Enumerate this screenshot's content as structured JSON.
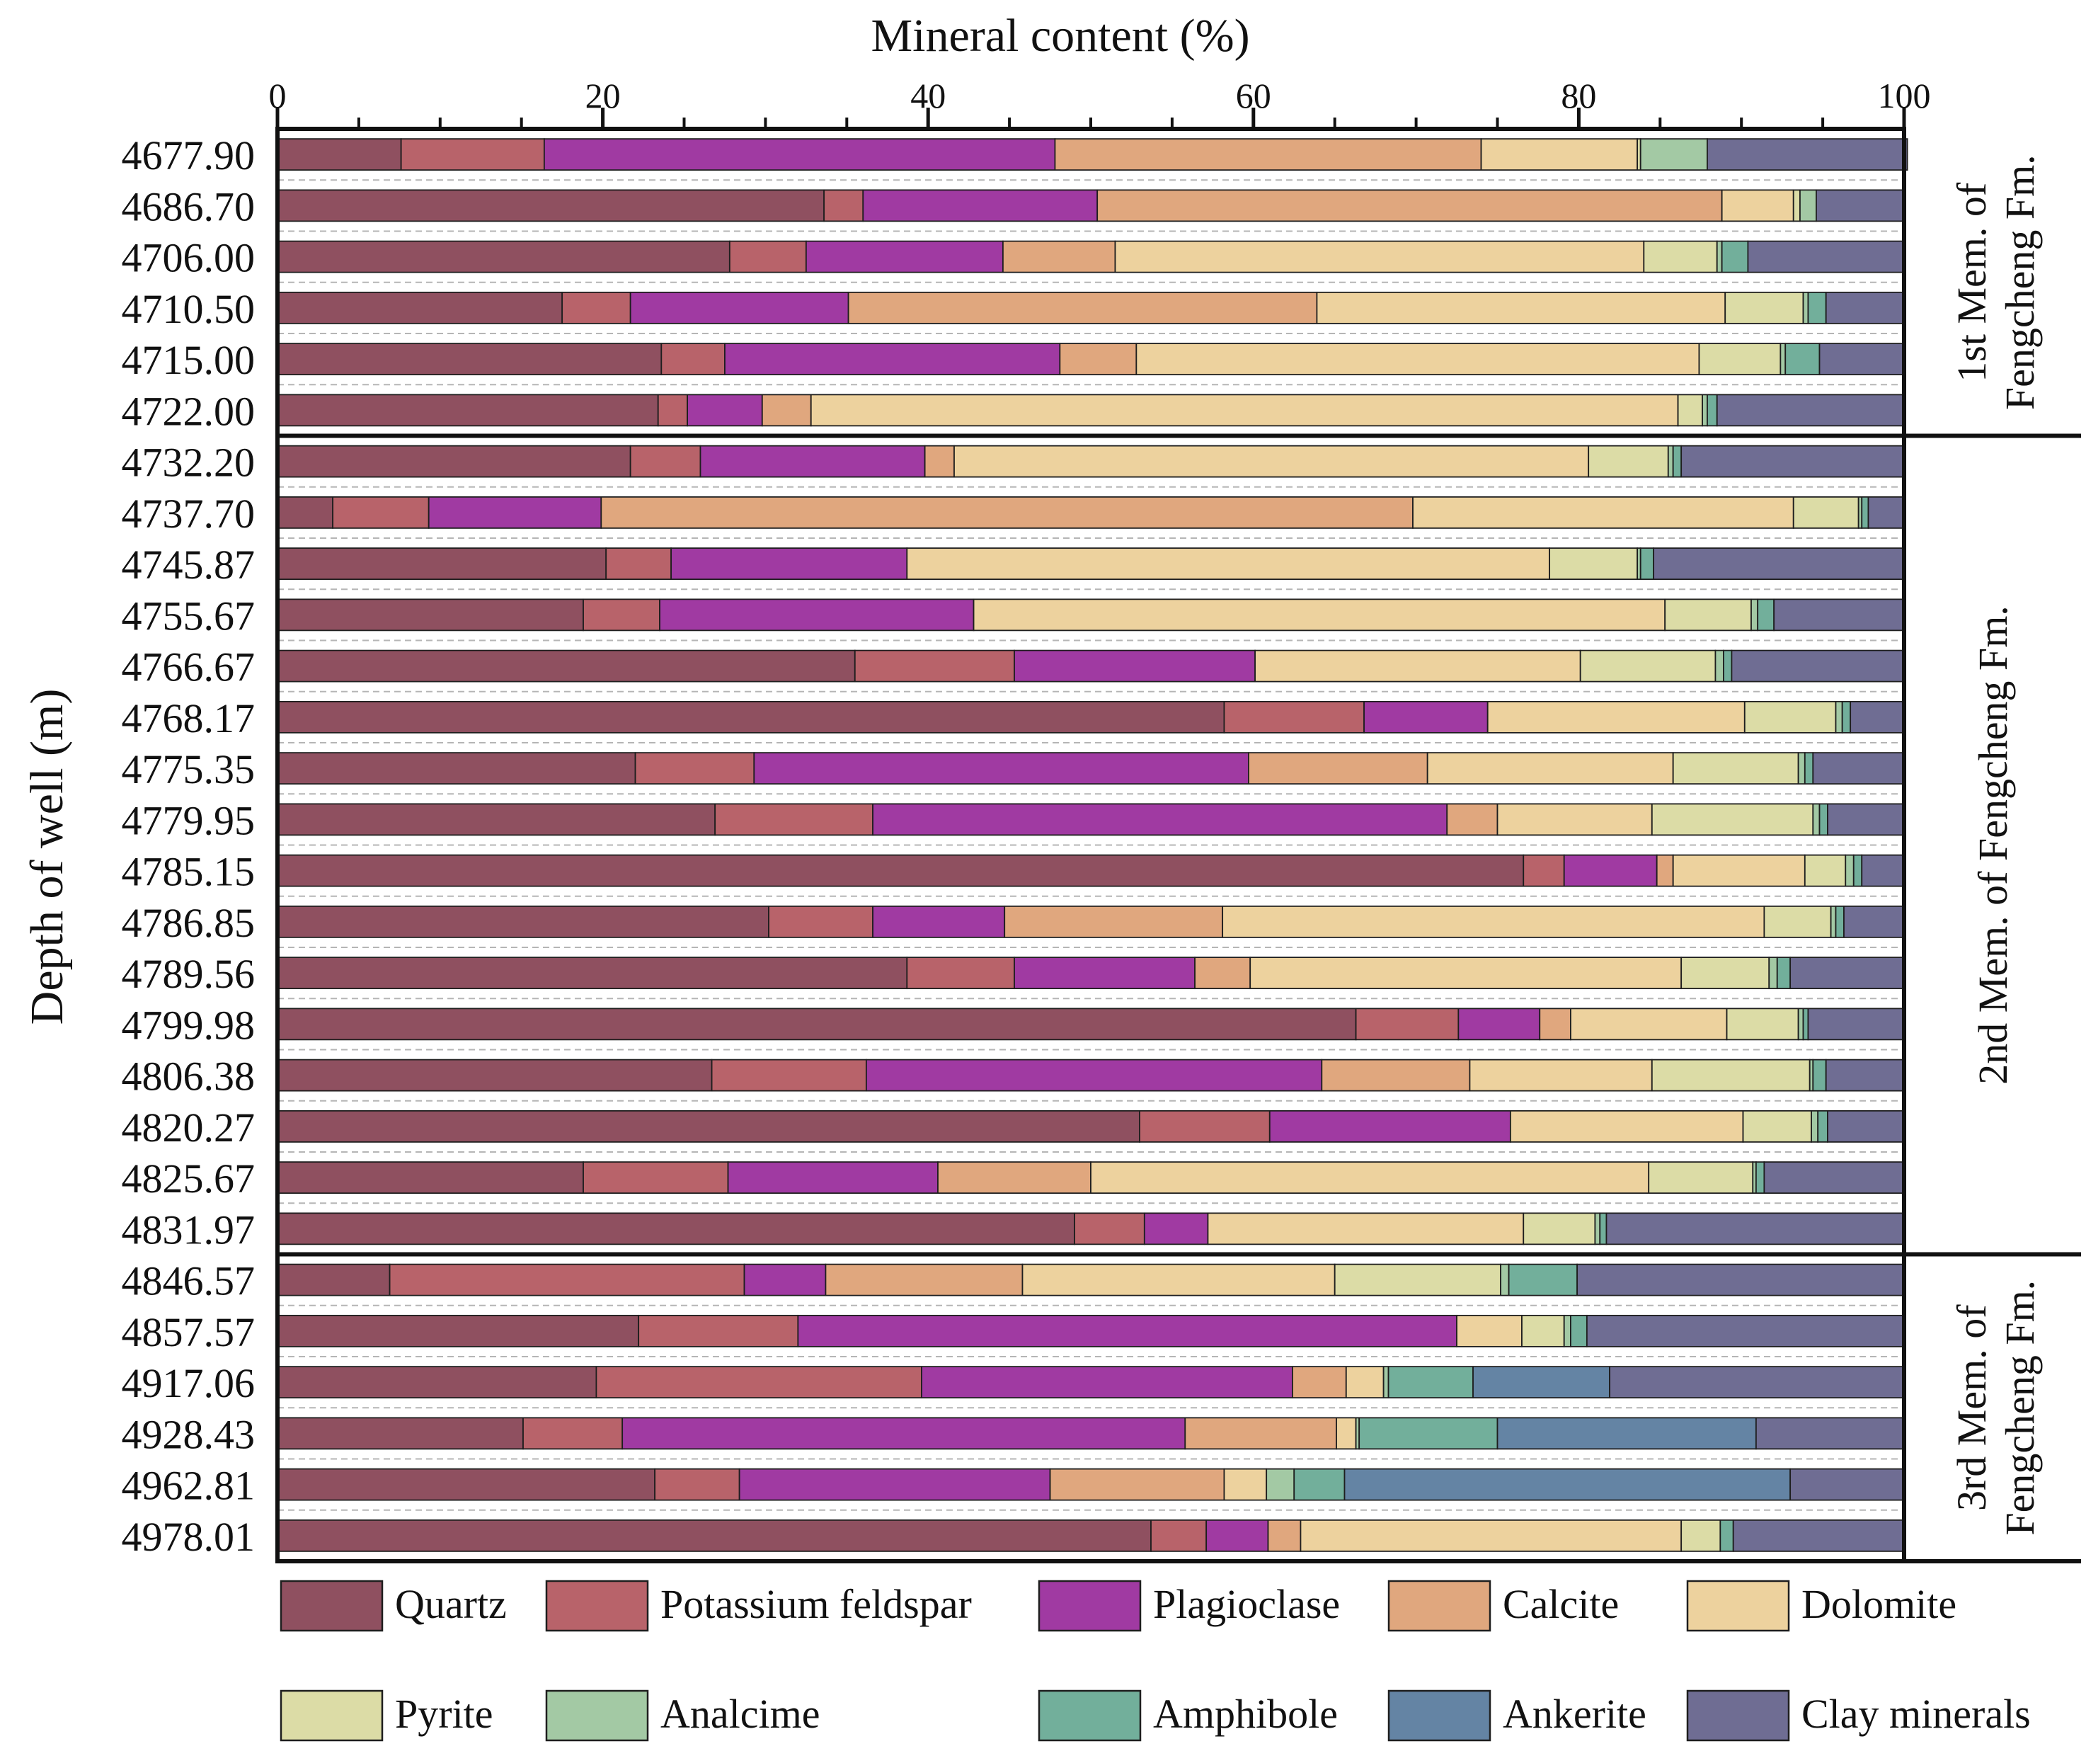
{
  "chart_data": {
    "type": "bar",
    "orientation": "horizontal-stacked",
    "title": "Mineral content (%)",
    "xlabel": "Mineral content (%)",
    "ylabel": "Depth of well (m)",
    "xlim": [
      0,
      100
    ],
    "x_ticks": [
      "0",
      "20",
      "40",
      "60",
      "80",
      "100"
    ],
    "x_tick_values": [
      0,
      20,
      40,
      60,
      80,
      100
    ],
    "legend_position": "bottom",
    "series": [
      {
        "name": "Quartz",
        "color": "#8f5060"
      },
      {
        "name": "Potassium feldspar",
        "color": "#b8636a"
      },
      {
        "name": "Plagioclase",
        "color": "#a03aa2"
      },
      {
        "name": "Calcite",
        "color": "#e0a77e"
      },
      {
        "name": "Dolomite",
        "color": "#edd29e"
      },
      {
        "name": "Pyrite",
        "color": "#dcdca6"
      },
      {
        "name": "Analcime",
        "color": "#a3c9a4"
      },
      {
        "name": "Amphibole",
        "color": "#72af9b"
      },
      {
        "name": "Ankerite",
        "color": "#6484a4"
      },
      {
        "name": "Clay minerals",
        "color": "#6f6d93"
      }
    ],
    "members": [
      {
        "label": "1st Mem. of Fengcheng Fm.",
        "line1": "1st Mem. of",
        "line2": "Fengcheng Fm.",
        "first_row": 0,
        "last_row": 5
      },
      {
        "label": "2nd Mem. of Fengcheng Fm.",
        "line1": "2nd Mem. of  Fengcheng Fm.",
        "line2": "",
        "first_row": 6,
        "last_row": 21
      },
      {
        "label": "3rd Mem. of Fengcheng Fm.",
        "line1": "3rd Mem. of",
        "line2": "Fengcheng Fm.",
        "first_row": 22,
        "last_row": 27
      }
    ],
    "rows": [
      {
        "depth": "4677.90",
        "values": [
          7.6,
          8.8,
          31.4,
          26.2,
          9.6,
          0.2,
          4.1,
          0,
          0,
          12.3
        ]
      },
      {
        "depth": "4686.70",
        "values": [
          33.6,
          2.4,
          14.4,
          38.4,
          4.4,
          0.4,
          1.0,
          0,
          0,
          5.4
        ]
      },
      {
        "depth": "4706.00",
        "values": [
          27.8,
          4.7,
          12.1,
          6.9,
          32.5,
          4.5,
          0.3,
          1.6,
          0,
          9.6
        ]
      },
      {
        "depth": "4710.50",
        "values": [
          17.5,
          4.2,
          13.4,
          28.8,
          25.1,
          4.8,
          0.3,
          1.1,
          0,
          4.8
        ]
      },
      {
        "depth": "4715.00",
        "values": [
          23.6,
          3.9,
          20.6,
          4.7,
          34.6,
          5.0,
          0.3,
          2.1,
          0,
          5.2
        ]
      },
      {
        "depth": "4722.00",
        "values": [
          23.4,
          1.8,
          4.6,
          3.0,
          53.3,
          1.5,
          0.3,
          0.6,
          0,
          11.5
        ]
      },
      {
        "depth": "4732.20",
        "values": [
          21.7,
          4.3,
          13.8,
          1.8,
          39.0,
          4.9,
          0.3,
          0.5,
          0,
          13.7
        ]
      },
      {
        "depth": "4737.70",
        "values": [
          3.4,
          5.9,
          10.6,
          49.9,
          23.4,
          4.0,
          0.2,
          0.4,
          0,
          2.2
        ]
      },
      {
        "depth": "4745.87",
        "values": [
          20.2,
          4.0,
          14.5,
          0,
          39.5,
          5.4,
          0.2,
          0.8,
          0,
          15.4
        ]
      },
      {
        "depth": "4755.67",
        "values": [
          18.8,
          4.7,
          19.3,
          0,
          42.5,
          5.3,
          0.4,
          1.0,
          0,
          8.0
        ]
      },
      {
        "depth": "4766.67",
        "values": [
          35.5,
          9.8,
          14.8,
          0,
          20.0,
          8.3,
          0.5,
          0.5,
          0,
          10.6
        ]
      },
      {
        "depth": "4768.17",
        "values": [
          58.2,
          8.6,
          7.6,
          0,
          15.8,
          5.6,
          0.4,
          0.5,
          0,
          3.3
        ]
      },
      {
        "depth": "4775.35",
        "values": [
          22.0,
          7.3,
          30.4,
          11.0,
          15.1,
          7.7,
          0.4,
          0.5,
          0,
          5.6
        ]
      },
      {
        "depth": "4779.95",
        "values": [
          26.9,
          9.7,
          35.3,
          3.1,
          9.5,
          9.9,
          0.4,
          0.5,
          0,
          4.7
        ]
      },
      {
        "depth": "4785.15",
        "values": [
          76.6,
          2.5,
          5.7,
          1.0,
          8.1,
          2.5,
          0.5,
          0.5,
          0,
          2.6
        ]
      },
      {
        "depth": "4786.85",
        "values": [
          30.2,
          6.4,
          8.1,
          13.4,
          33.3,
          4.1,
          0.3,
          0.5,
          0,
          3.7
        ]
      },
      {
        "depth": "4789.56",
        "values": [
          38.7,
          6.6,
          11.1,
          3.4,
          26.5,
          5.4,
          0.5,
          0.8,
          0,
          7.0
        ]
      },
      {
        "depth": "4799.98",
        "values": [
          66.3,
          6.3,
          5.0,
          1.9,
          9.6,
          4.4,
          0.3,
          0.3,
          0,
          5.9
        ]
      },
      {
        "depth": "4806.38",
        "values": [
          26.7,
          9.5,
          28.0,
          9.1,
          11.2,
          9.7,
          0.2,
          0.8,
          0,
          4.8
        ]
      },
      {
        "depth": "4820.27",
        "values": [
          53.0,
          8.0,
          14.8,
          0,
          14.3,
          4.2,
          0.4,
          0.6,
          0,
          4.7
        ]
      },
      {
        "depth": "4825.67",
        "values": [
          18.8,
          8.9,
          12.9,
          9.4,
          34.3,
          6.4,
          0.2,
          0.5,
          0,
          8.6
        ]
      },
      {
        "depth": "4831.97",
        "values": [
          49.0,
          4.3,
          3.9,
          0,
          19.4,
          4.4,
          0.3,
          0.4,
          0,
          18.3
        ]
      },
      {
        "depth": "4846.57",
        "values": [
          6.9,
          21.8,
          5.0,
          12.1,
          19.2,
          10.2,
          0.5,
          4.2,
          0,
          20.1
        ]
      },
      {
        "depth": "4857.57",
        "values": [
          22.2,
          9.8,
          40.5,
          0,
          4.0,
          2.6,
          0.4,
          1.0,
          0,
          19.5
        ]
      },
      {
        "depth": "4917.06",
        "values": [
          19.6,
          20.0,
          22.8,
          3.3,
          2.3,
          0,
          0.3,
          5.2,
          8.4,
          18.1
        ]
      },
      {
        "depth": "4928.43",
        "values": [
          15.1,
          6.1,
          34.6,
          9.3,
          1.2,
          0,
          0.2,
          8.5,
          15.9,
          9.1
        ]
      },
      {
        "depth": "4962.81",
        "values": [
          23.2,
          5.2,
          19.1,
          10.7,
          2.6,
          0,
          1.7,
          3.1,
          27.4,
          7.0
        ]
      },
      {
        "depth": "4978.01",
        "values": [
          53.7,
          3.4,
          3.8,
          2.0,
          23.4,
          2.4,
          0,
          0.8,
          0,
          10.5
        ]
      }
    ]
  }
}
